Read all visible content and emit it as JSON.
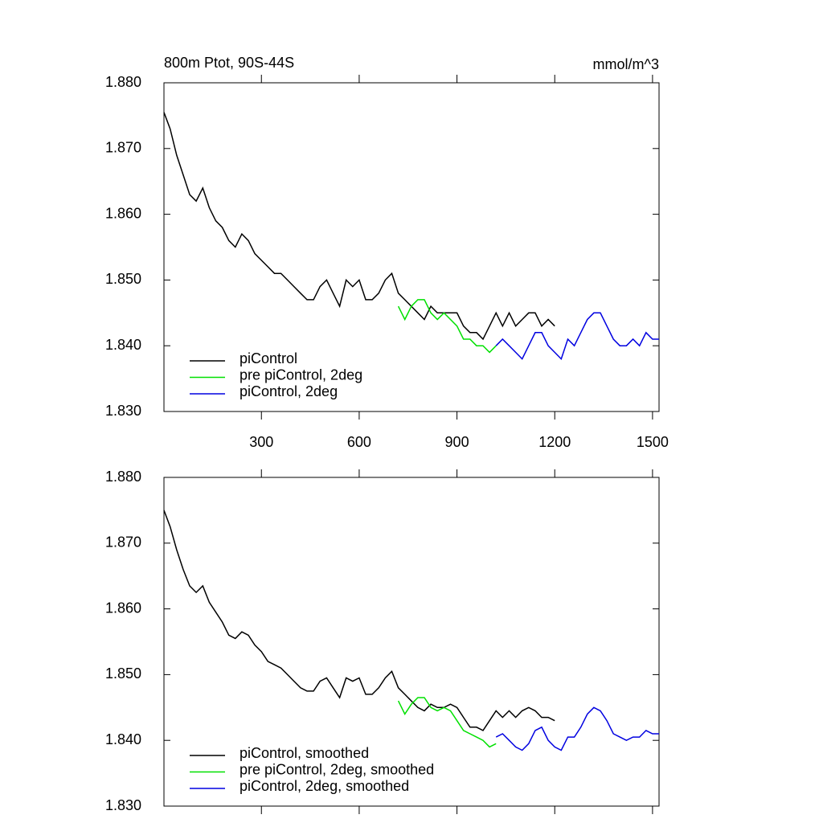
{
  "chart_data": [
    {
      "type": "line",
      "title": "800m Ptot, 90S-44S",
      "units": "mmol/m^3",
      "xlim": [
        1,
        1520
      ],
      "xticks": [
        300,
        600,
        900,
        1200,
        1500
      ],
      "ylim": [
        1.83,
        1.88
      ],
      "yticks": [
        {
          "value": 1.83,
          "label": "1.830"
        },
        {
          "value": 1.84,
          "label": "1.840"
        },
        {
          "value": 1.85,
          "label": "1.850"
        },
        {
          "value": 1.86,
          "label": "1.860"
        },
        {
          "value": 1.87,
          "label": "1.870"
        },
        {
          "value": 1.88,
          "label": "1.880"
        }
      ],
      "legend": "lower-left",
      "series": [
        {
          "name": "piControl",
          "color": "#000000",
          "x": [
            1,
            20,
            40,
            60,
            80,
            100,
            120,
            140,
            160,
            180,
            200,
            220,
            240,
            260,
            280,
            300,
            320,
            340,
            360,
            380,
            400,
            420,
            440,
            460,
            480,
            500,
            520,
            540,
            560,
            580,
            600,
            620,
            640,
            660,
            680,
            700,
            720,
            740,
            760,
            780,
            800,
            820,
            840,
            860,
            880,
            900,
            920,
            940,
            960,
            980,
            1000,
            1020,
            1040,
            1060,
            1080,
            1100,
            1120,
            1140,
            1160,
            1180,
            1200
          ],
          "values": [
            1.8755,
            1.873,
            1.869,
            1.866,
            1.863,
            1.862,
            1.864,
            1.861,
            1.859,
            1.858,
            1.856,
            1.855,
            1.857,
            1.856,
            1.854,
            1.853,
            1.852,
            1.851,
            1.851,
            1.85,
            1.849,
            1.848,
            1.847,
            1.847,
            1.849,
            1.85,
            1.848,
            1.846,
            1.85,
            1.849,
            1.85,
            1.847,
            1.847,
            1.848,
            1.85,
            1.851,
            1.848,
            1.847,
            1.846,
            1.845,
            1.844,
            1.846,
            1.845,
            1.845,
            1.845,
            1.845,
            1.843,
            1.842,
            1.842,
            1.841,
            1.843,
            1.845,
            1.843,
            1.845,
            1.843,
            1.844,
            1.845,
            1.845,
            1.843,
            1.844,
            1.843
          ]
        },
        {
          "name": "pre piControl, 2deg",
          "color": "#00e000",
          "x": [
            720,
            740,
            760,
            780,
            800,
            820,
            840,
            860,
            880,
            900,
            920,
            940,
            960,
            980,
            1000,
            1020
          ],
          "values": [
            1.846,
            1.844,
            1.846,
            1.847,
            1.847,
            1.845,
            1.844,
            1.845,
            1.844,
            1.843,
            1.841,
            1.841,
            1.84,
            1.84,
            1.839,
            1.84
          ]
        },
        {
          "name": "piControl, 2deg",
          "color": "#0000e0",
          "x": [
            1020,
            1040,
            1060,
            1080,
            1100,
            1120,
            1140,
            1160,
            1180,
            1200,
            1220,
            1240,
            1260,
            1280,
            1300,
            1320,
            1340,
            1360,
            1380,
            1400,
            1420,
            1440,
            1460,
            1480,
            1500,
            1520
          ],
          "values": [
            1.84,
            1.841,
            1.84,
            1.839,
            1.838,
            1.84,
            1.842,
            1.842,
            1.84,
            1.839,
            1.838,
            1.841,
            1.84,
            1.842,
            1.844,
            1.845,
            1.845,
            1.843,
            1.841,
            1.84,
            1.84,
            1.841,
            1.84,
            1.842,
            1.841,
            1.841
          ]
        }
      ]
    },
    {
      "type": "line",
      "xlim": [
        1,
        1520
      ],
      "xticks": [
        300,
        600,
        900,
        1200,
        1500
      ],
      "ylim": [
        1.83,
        1.88
      ],
      "yticks": [
        {
          "value": 1.83,
          "label": "1.830"
        },
        {
          "value": 1.84,
          "label": "1.840"
        },
        {
          "value": 1.85,
          "label": "1.850"
        },
        {
          "value": 1.86,
          "label": "1.860"
        },
        {
          "value": 1.87,
          "label": "1.870"
        },
        {
          "value": 1.88,
          "label": "1.880"
        }
      ],
      "legend": "lower-left",
      "series": [
        {
          "name": "piControl, smoothed",
          "color": "#000000",
          "x": [
            1,
            20,
            40,
            60,
            80,
            100,
            120,
            140,
            160,
            180,
            200,
            220,
            240,
            260,
            280,
            300,
            320,
            340,
            360,
            380,
            400,
            420,
            440,
            460,
            480,
            500,
            520,
            540,
            560,
            580,
            600,
            620,
            640,
            660,
            680,
            700,
            720,
            740,
            760,
            780,
            800,
            820,
            840,
            860,
            880,
            900,
            920,
            940,
            960,
            980,
            1000,
            1020,
            1040,
            1060,
            1080,
            1100,
            1120,
            1140,
            1160,
            1180,
            1200
          ],
          "values": [
            1.875,
            1.8725,
            1.869,
            1.866,
            1.8635,
            1.8625,
            1.8635,
            1.861,
            1.8595,
            1.858,
            1.856,
            1.8555,
            1.8565,
            1.856,
            1.8545,
            1.8535,
            1.852,
            1.8515,
            1.851,
            1.85,
            1.849,
            1.848,
            1.8475,
            1.8475,
            1.849,
            1.8495,
            1.848,
            1.8465,
            1.8495,
            1.849,
            1.8495,
            1.847,
            1.847,
            1.848,
            1.8495,
            1.8505,
            1.848,
            1.847,
            1.846,
            1.845,
            1.8445,
            1.8455,
            1.845,
            1.845,
            1.8455,
            1.845,
            1.8435,
            1.842,
            1.842,
            1.8415,
            1.843,
            1.8445,
            1.8435,
            1.8445,
            1.8435,
            1.8445,
            1.845,
            1.8445,
            1.8435,
            1.8435,
            1.843
          ]
        },
        {
          "name": "pre piControl, 2deg, smoothed",
          "color": "#00e000",
          "x": [
            720,
            740,
            760,
            780,
            800,
            820,
            840,
            860,
            880,
            900,
            920,
            940,
            960,
            980,
            1000,
            1020
          ],
          "values": [
            1.846,
            1.844,
            1.8455,
            1.8465,
            1.8465,
            1.845,
            1.8445,
            1.845,
            1.8445,
            1.843,
            1.8415,
            1.841,
            1.8405,
            1.84,
            1.839,
            1.8395
          ]
        },
        {
          "name": "piControl, 2deg, smoothed",
          "color": "#0000e0",
          "x": [
            1020,
            1040,
            1060,
            1080,
            1100,
            1120,
            1140,
            1160,
            1180,
            1200,
            1220,
            1240,
            1260,
            1280,
            1300,
            1320,
            1340,
            1360,
            1380,
            1400,
            1420,
            1440,
            1460,
            1480,
            1500,
            1520
          ],
          "values": [
            1.8405,
            1.841,
            1.84,
            1.839,
            1.8385,
            1.8395,
            1.8415,
            1.842,
            1.84,
            1.839,
            1.8385,
            1.8405,
            1.8405,
            1.842,
            1.844,
            1.845,
            1.8445,
            1.843,
            1.841,
            1.8405,
            1.84,
            1.8405,
            1.8405,
            1.8415,
            1.841,
            1.841
          ]
        }
      ]
    }
  ]
}
